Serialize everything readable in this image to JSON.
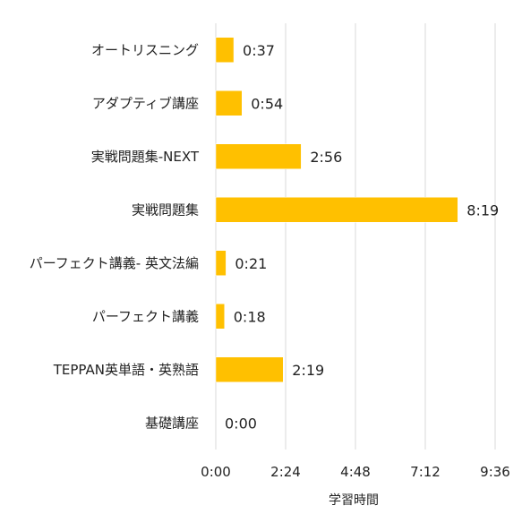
{
  "chart_data": {
    "type": "bar",
    "orientation": "horizontal",
    "categories": [
      "オートリスニング",
      "アダプティブ講座",
      "実戦問題集-NEXT",
      "実戦問題集",
      "パーフェクト講義- 英文法編",
      "パーフェクト講義",
      "TEPPAN英単語・英熟語",
      "基礎講座"
    ],
    "values_minutes": [
      37,
      54,
      176,
      499,
      21,
      18,
      139,
      0
    ],
    "data_labels": [
      "0:37",
      "0:54",
      "2:56",
      "8:19",
      "0:21",
      "0:18",
      "2:19",
      "0:00"
    ],
    "xlabel": "学習時間",
    "xlim_minutes": [
      0,
      576
    ],
    "x_ticks_minutes": [
      0,
      144,
      288,
      432,
      576
    ],
    "x_tick_labels": [
      "0:00",
      "2:24",
      "4:48",
      "7:12",
      "9:36"
    ],
    "grid": true,
    "bar_color": "#FFC000"
  }
}
